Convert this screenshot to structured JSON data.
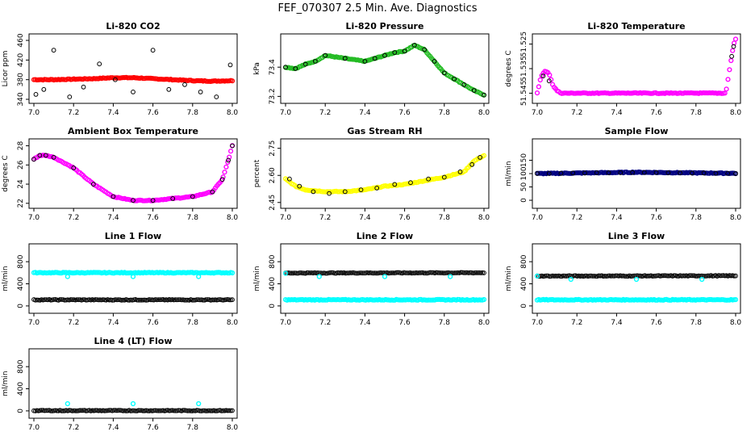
{
  "figure": {
    "main_title": "FEF_070307  2.5 Min. Ave. Diagnostics"
  },
  "colors": {
    "black": "#000000",
    "red": "#ff0000",
    "green": "#22bb22",
    "magenta": "#ff00ff",
    "yellow": "#ffff00",
    "blue": "#000080",
    "cyan": "#00ffff"
  },
  "chart_data": [
    {
      "type": "scatter",
      "title": "Li-820 CO2",
      "ylabel": "Licor ppm",
      "xlim": [
        7.0,
        8.0
      ],
      "ylim": [
        340,
        465
      ],
      "xticks": [
        "7.0",
        "7.2",
        "7.4",
        "7.6",
        "7.8",
        "8.0"
      ],
      "yticks": [
        "340",
        "380",
        "420",
        "460"
      ],
      "series": [
        {
          "color": "red",
          "style": "dense",
          "x": [
            7.0,
            7.1,
            7.2,
            7.3,
            7.4,
            7.5,
            7.6,
            7.7,
            7.8,
            7.9,
            8.0
          ],
          "y": [
            380,
            380,
            381,
            382,
            384,
            384,
            382,
            380,
            378,
            377,
            378
          ]
        },
        {
          "color": "black",
          "style": "points",
          "x": [
            7.01,
            7.05,
            7.1,
            7.18,
            7.25,
            7.33,
            7.41,
            7.5,
            7.6,
            7.68,
            7.76,
            7.84,
            7.92,
            7.99
          ],
          "y": [
            350,
            360,
            440,
            345,
            365,
            412,
            380,
            355,
            440,
            360,
            370,
            355,
            345,
            410
          ]
        }
      ]
    },
    {
      "type": "scatter",
      "title": "Li-820 Pressure",
      "ylabel": "kPa",
      "xlim": [
        7.0,
        8.0
      ],
      "ylim": [
        73.18,
        73.6
      ],
      "xticks": [
        "7.0",
        "7.2",
        "7.4",
        "7.6",
        "7.8",
        "8.0"
      ],
      "yticks": [
        "73.2",
        "73.4"
      ],
      "series": [
        {
          "color": "green",
          "style": "dense",
          "x": [
            7.0,
            7.05,
            7.1,
            7.15,
            7.2,
            7.3,
            7.4,
            7.45,
            7.5,
            7.55,
            7.6,
            7.65,
            7.7,
            7.75,
            7.8,
            7.85,
            7.9,
            7.95,
            8.0
          ],
          "y": [
            73.4,
            73.39,
            73.42,
            73.44,
            73.48,
            73.46,
            73.44,
            73.46,
            73.48,
            73.5,
            73.51,
            73.55,
            73.52,
            73.44,
            73.36,
            73.32,
            73.28,
            73.24,
            73.21
          ]
        },
        {
          "color": "black",
          "style": "points",
          "x": [
            7.0,
            7.05,
            7.1,
            7.15,
            7.2,
            7.3,
            7.4,
            7.45,
            7.5,
            7.55,
            7.6,
            7.65,
            7.7,
            7.75,
            7.8,
            7.85,
            7.9,
            7.95,
            8.0
          ],
          "y": [
            73.4,
            73.39,
            73.42,
            73.44,
            73.48,
            73.46,
            73.44,
            73.46,
            73.48,
            73.5,
            73.51,
            73.55,
            73.52,
            73.44,
            73.36,
            73.32,
            73.28,
            73.24,
            73.21
          ]
        }
      ]
    },
    {
      "type": "scatter",
      "title": "Li-820 Temperature",
      "ylabel": "degrees C",
      "xlim": [
        7.0,
        8.0
      ],
      "ylim": [
        51.5475,
        51.5225
      ],
      "xticks": [
        "7.0",
        "7.2",
        "7.4",
        "7.6",
        "7.8",
        "8.0"
      ],
      "yticks": [
        "51.545",
        "51.535",
        "51.525"
      ],
      "series": [
        {
          "color": "magenta",
          "style": "dense",
          "x": [
            7.0,
            7.02,
            7.04,
            7.06,
            7.08,
            7.1,
            7.12,
            7.15,
            7.5,
            7.95,
            7.97,
            7.99,
            8.0
          ],
          "y": [
            51.545,
            51.538,
            51.536,
            51.537,
            51.542,
            51.544,
            51.545,
            51.545,
            51.545,
            51.545,
            51.535,
            51.525,
            51.523
          ]
        },
        {
          "color": "black",
          "style": "points",
          "x": [
            7.03,
            7.06,
            7.98,
            7.99
          ],
          "y": [
            51.538,
            51.54,
            51.53,
            51.526
          ]
        }
      ]
    },
    {
      "type": "scatter",
      "title": "Ambient Box Temperature",
      "ylabel": "degrees C",
      "xlim": [
        7.0,
        8.0
      ],
      "ylim": [
        21.9,
        28.3
      ],
      "xticks": [
        "7.0",
        "7.2",
        "7.4",
        "7.6",
        "7.8",
        "8.0"
      ],
      "yticks": [
        "22",
        "24",
        "26",
        "28"
      ],
      "series": [
        {
          "color": "magenta",
          "style": "dense",
          "x": [
            7.0,
            7.03,
            7.06,
            7.1,
            7.2,
            7.3,
            7.4,
            7.5,
            7.6,
            7.7,
            7.8,
            7.9,
            7.95,
            7.98,
            8.0
          ],
          "y": [
            26.6,
            27.0,
            27.0,
            26.8,
            25.7,
            24.0,
            22.7,
            22.3,
            22.3,
            22.5,
            22.7,
            23.2,
            24.5,
            26.5,
            28.0
          ]
        },
        {
          "color": "black",
          "style": "points",
          "x": [
            7.0,
            7.03,
            7.06,
            7.1,
            7.2,
            7.3,
            7.4,
            7.5,
            7.6,
            7.7,
            7.8,
            7.9,
            7.95,
            7.98,
            8.0
          ],
          "y": [
            26.6,
            27.0,
            27.0,
            26.8,
            25.7,
            24.0,
            22.7,
            22.3,
            22.3,
            22.5,
            22.7,
            23.2,
            24.5,
            26.5,
            28.0
          ]
        }
      ]
    },
    {
      "type": "scatter",
      "title": "Gas Stream RH",
      "ylabel": "percent",
      "xlim": [
        7.0,
        8.0
      ],
      "ylim": [
        2.44,
        2.78
      ],
      "xticks": [
        "7.0",
        "7.2",
        "7.4",
        "7.6",
        "7.8",
        "8.0"
      ],
      "yticks": [
        "2.45",
        "2.60",
        "2.75"
      ],
      "series": [
        {
          "color": "yellow",
          "style": "dense",
          "x": [
            7.0,
            7.05,
            7.1,
            7.2,
            7.3,
            7.4,
            7.5,
            7.6,
            7.7,
            7.8,
            7.9,
            7.95,
            8.0
          ],
          "y": [
            2.58,
            2.54,
            2.52,
            2.51,
            2.51,
            2.52,
            2.54,
            2.55,
            2.57,
            2.59,
            2.62,
            2.68,
            2.71
          ]
        },
        {
          "color": "black",
          "style": "points",
          "x": [
            7.02,
            7.07,
            7.14,
            7.22,
            7.3,
            7.38,
            7.46,
            7.55,
            7.63,
            7.72,
            7.8,
            7.88,
            7.94,
            7.98
          ],
          "y": [
            2.58,
            2.54,
            2.51,
            2.5,
            2.51,
            2.52,
            2.53,
            2.55,
            2.56,
            2.58,
            2.59,
            2.62,
            2.66,
            2.7
          ]
        }
      ]
    },
    {
      "type": "scatter",
      "title": "Sample Flow",
      "ylabel": "ml/min",
      "xlim": [
        7.0,
        8.0
      ],
      "ylim": [
        -15,
        215
      ],
      "xticks": [
        "7.0",
        "7.2",
        "7.4",
        "7.6",
        "7.8",
        "8.0"
      ],
      "yticks": [
        "0",
        "50",
        "100",
        "150"
      ],
      "series": [
        {
          "color": "blue",
          "style": "dense",
          "x": [
            7.0,
            7.5,
            8.0
          ],
          "y": [
            100,
            105,
            101
          ]
        },
        {
          "color": "black",
          "style": "points",
          "x": [
            7.0,
            7.06,
            7.12,
            7.18,
            7.24,
            7.3,
            7.36,
            7.42,
            7.48,
            7.54,
            7.6,
            7.66,
            7.72,
            7.78,
            7.84,
            7.9,
            7.96,
            8.0
          ],
          "y": [
            100,
            100,
            101,
            102,
            102,
            103,
            103,
            103,
            104,
            104,
            104,
            103,
            103,
            102,
            102,
            101,
            101,
            100
          ]
        }
      ]
    },
    {
      "type": "scatter",
      "title": "Line 1 Flow",
      "ylabel": "ml/min",
      "xlim": [
        7.0,
        8.0
      ],
      "ylim": [
        -60,
        1050
      ],
      "xticks": [
        "7.0",
        "7.2",
        "7.4",
        "7.6",
        "7.8",
        "8.0"
      ],
      "yticks": [
        "0",
        "400",
        "800"
      ],
      "series": [
        {
          "color": "cyan",
          "style": "dense",
          "x": [
            7.0,
            8.0
          ],
          "y": [
            600,
            600
          ]
        },
        {
          "color": "cyan",
          "style": "points",
          "x": [
            7.17,
            7.5,
            7.83
          ],
          "y": [
            530,
            530,
            530
          ]
        },
        {
          "color": "black",
          "style": "dense",
          "x": [
            7.0,
            8.0
          ],
          "y": [
            110,
            110
          ]
        }
      ]
    },
    {
      "type": "scatter",
      "title": "Line 2 Flow",
      "ylabel": "ml/min",
      "xlim": [
        7.0,
        8.0
      ],
      "ylim": [
        -60,
        1050
      ],
      "xticks": [
        "7.0",
        "7.2",
        "7.4",
        "7.6",
        "7.8",
        "8.0"
      ],
      "yticks": [
        "0",
        "400",
        "800"
      ],
      "series": [
        {
          "color": "cyan",
          "style": "dense",
          "x": [
            7.0,
            8.0
          ],
          "y": [
            110,
            110
          ]
        },
        {
          "color": "black",
          "style": "dense",
          "x": [
            7.0,
            8.0
          ],
          "y": [
            595,
            600
          ]
        },
        {
          "color": "cyan",
          "style": "points",
          "x": [
            7.0,
            7.17,
            7.5,
            7.83
          ],
          "y": [
            590,
            530,
            530,
            530
          ]
        }
      ]
    },
    {
      "type": "scatter",
      "title": "Line 3 Flow",
      "ylabel": "ml/min",
      "xlim": [
        7.0,
        8.0
      ],
      "ylim": [
        -60,
        1050
      ],
      "xticks": [
        "7.0",
        "7.2",
        "7.4",
        "7.6",
        "7.8",
        "8.0"
      ],
      "yticks": [
        "0",
        "400",
        "800"
      ],
      "series": [
        {
          "color": "cyan",
          "style": "dense",
          "x": [
            7.0,
            8.0
          ],
          "y": [
            110,
            110
          ]
        },
        {
          "color": "black",
          "style": "dense",
          "x": [
            7.0,
            8.0
          ],
          "y": [
            540,
            545
          ]
        },
        {
          "color": "cyan",
          "style": "points",
          "x": [
            7.0,
            7.17,
            7.5,
            7.83
          ],
          "y": [
            540,
            480,
            480,
            480
          ]
        }
      ]
    },
    {
      "type": "scatter",
      "title": "Line 4 (LT) Flow",
      "ylabel": "ml/min",
      "xlim": [
        7.0,
        8.0
      ],
      "ylim": [
        -60,
        1050
      ],
      "xticks": [
        "7.0",
        "7.2",
        "7.4",
        "7.6",
        "7.8",
        "8.0"
      ],
      "yticks": [
        "0",
        "400",
        "800"
      ],
      "series": [
        {
          "color": "black",
          "style": "dense",
          "x": [
            7.0,
            8.0
          ],
          "y": [
            5,
            5
          ]
        },
        {
          "color": "cyan",
          "style": "points",
          "x": [
            7.17,
            7.5,
            7.83
          ],
          "y": [
            130,
            130,
            130
          ]
        }
      ]
    }
  ]
}
